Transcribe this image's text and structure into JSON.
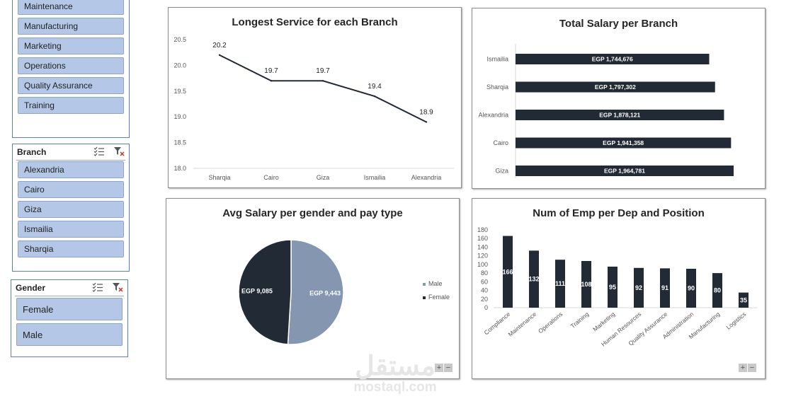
{
  "slicers": {
    "department": {
      "items": [
        "Maintenance",
        "Manufacturing",
        "Marketing",
        "Operations",
        "Quality Assurance",
        "Training"
      ]
    },
    "branch": {
      "title": "Branch",
      "items": [
        "Alexandria",
        "Cairo",
        "Giza",
        "Ismailia",
        "Sharqia"
      ]
    },
    "gender": {
      "title": "Gender",
      "items": [
        "Female",
        "Male"
      ]
    }
  },
  "chart_data": [
    {
      "type": "line",
      "title": "Longest Service for each Branch",
      "categories": [
        "Sharqia",
        "Cairo",
        "Giza",
        "Ismailia",
        "Alexandria"
      ],
      "values": [
        20.2,
        19.7,
        19.7,
        19.4,
        18.9
      ],
      "data_labels": [
        "20.2",
        "19.7",
        "19.7",
        "19.4",
        "18.9"
      ],
      "y_ticks": [
        "18.0",
        "18.5",
        "19.0",
        "19.5",
        "20.0",
        "20.5"
      ],
      "ylim": [
        18.0,
        20.5
      ],
      "grid": false,
      "line_color": "#222a35"
    },
    {
      "type": "bar",
      "orientation": "horizontal",
      "title": "Total Salary per Branch",
      "categories": [
        "Ismailia",
        "Sharqia",
        "Alexandria",
        "Cairo",
        "Giza"
      ],
      "values": [
        1744676,
        1797302,
        1878121,
        1941358,
        1964781
      ],
      "data_labels": [
        "EGP 1,744,676",
        "EGP 1,797,302",
        "EGP 1,878,121",
        "EGP 1,941,358",
        "EGP 1,964,781"
      ],
      "bar_color": "#222a35"
    },
    {
      "type": "pie",
      "title": "Avg Salary per gender and pay type",
      "slices": [
        {
          "name": "Male",
          "value": 9443,
          "label": "EGP 9,443",
          "color": "#8496b0"
        },
        {
          "name": "Female",
          "value": 9085,
          "label": "EGP 9,085",
          "color": "#222a35"
        }
      ],
      "legend": [
        "Male",
        "Female"
      ],
      "legend_position": "right"
    },
    {
      "type": "bar",
      "title": "Num of Emp per  Dep and Position",
      "categories": [
        "Compliance",
        "Maintenance",
        "Operations",
        "Training",
        "Marketing",
        "Human Resources",
        "Quality Assurance",
        "Administration",
        "Manufacturing",
        "Logistics"
      ],
      "values": [
        166,
        132,
        111,
        108,
        95,
        92,
        91,
        90,
        80,
        35
      ],
      "data_labels": [
        "166",
        "132",
        "111",
        "108",
        "95",
        "92",
        "91",
        "90",
        "80",
        "35"
      ],
      "y_ticks": [
        "0",
        "20",
        "40",
        "60",
        "80",
        "100",
        "120",
        "140",
        "160",
        "180"
      ],
      "ylim": [
        0,
        180
      ],
      "bar_color": "#222a35"
    }
  ],
  "zoom_controls": {
    "plus": "+",
    "minus": "−"
  },
  "watermark": {
    "arabic": "مستقل",
    "latin": "mostaql.com"
  }
}
